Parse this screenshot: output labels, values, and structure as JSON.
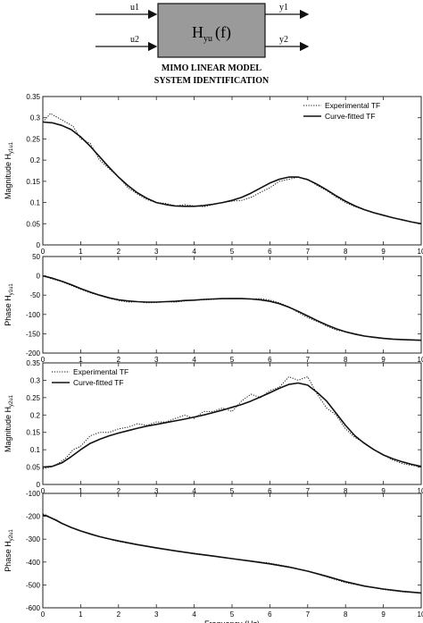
{
  "diagram": {
    "inputs": [
      "u1",
      "u2"
    ],
    "outputs": [
      "y1",
      "y2"
    ],
    "block_label_main": "H",
    "block_label_sub": "yu",
    "block_label_arg": "(f)",
    "caption_line1": "MIMO LINEAR MODEL",
    "caption_line2": "SYSTEM IDENTIFICATION",
    "block_color": "#9a9a9a"
  },
  "colors": {
    "line": "#111111",
    "frame": "#222222"
  },
  "chart_data": [
    {
      "type": "line",
      "ylabel": "Magnitude H",
      "ylabel_sub": "y1u1",
      "xlim": [
        0,
        10
      ],
      "ylim": [
        0,
        0.35
      ],
      "xticks": [
        "0",
        "1",
        "2",
        "3",
        "4",
        "5",
        "6",
        "7",
        "8",
        "9",
        "10"
      ],
      "yticks": [
        "0",
        "0.05",
        "0.1",
        "0.15",
        "0.2",
        "0.25",
        "0.3",
        "0.35"
      ],
      "legend": {
        "position": "top-right",
        "entries": [
          "Experimental TF",
          "Curve-fitted TF"
        ]
      },
      "series": [
        {
          "name": "Experimental TF",
          "style": "dotted",
          "x": [
            0,
            0.2,
            0.4,
            0.6,
            0.8,
            1.0,
            1.25,
            1.5,
            1.75,
            2.0,
            2.25,
            2.5,
            2.75,
            3.0,
            3.25,
            3.5,
            3.75,
            4.0,
            4.25,
            4.5,
            4.75,
            5.0,
            5.25,
            5.5,
            5.75,
            6.0,
            6.25,
            6.5,
            6.75,
            7.0,
            7.25,
            7.5,
            7.75,
            8.0,
            8.25,
            8.5,
            8.75,
            9.0,
            9.25,
            9.5,
            9.75,
            10.0
          ],
          "y": [
            0.29,
            0.31,
            0.3,
            0.29,
            0.28,
            0.25,
            0.24,
            0.2,
            0.18,
            0.16,
            0.135,
            0.12,
            0.107,
            0.1,
            0.098,
            0.092,
            0.095,
            0.092,
            0.09,
            0.095,
            0.1,
            0.103,
            0.105,
            0.112,
            0.124,
            0.135,
            0.15,
            0.155,
            0.16,
            0.155,
            0.14,
            0.128,
            0.113,
            0.1,
            0.09,
            0.083,
            0.075,
            0.07,
            0.064,
            0.06,
            0.054,
            0.05
          ]
        },
        {
          "name": "Curve-fitted TF",
          "style": "solid",
          "x": [
            0,
            0.25,
            0.5,
            0.75,
            1.0,
            1.25,
            1.5,
            1.75,
            2.0,
            2.25,
            2.5,
            2.75,
            3.0,
            3.25,
            3.5,
            3.75,
            4.0,
            4.25,
            4.5,
            4.75,
            5.0,
            5.25,
            5.5,
            5.75,
            6.0,
            6.25,
            6.5,
            6.75,
            7.0,
            7.25,
            7.5,
            7.75,
            8.0,
            8.25,
            8.5,
            8.75,
            9.0,
            9.25,
            9.5,
            9.75,
            10.0
          ],
          "y": [
            0.29,
            0.288,
            0.282,
            0.272,
            0.255,
            0.233,
            0.208,
            0.183,
            0.16,
            0.14,
            0.123,
            0.11,
            0.1,
            0.095,
            0.092,
            0.091,
            0.091,
            0.093,
            0.096,
            0.1,
            0.105,
            0.112,
            0.122,
            0.134,
            0.146,
            0.155,
            0.16,
            0.16,
            0.154,
            0.143,
            0.13,
            0.116,
            0.103,
            0.092,
            0.083,
            0.076,
            0.07,
            0.064,
            0.059,
            0.054,
            0.05
          ]
        }
      ]
    },
    {
      "type": "line",
      "ylabel": "Phase H",
      "ylabel_sub": "y1u1",
      "xlim": [
        0,
        10
      ],
      "ylim": [
        -200,
        50
      ],
      "xticks": [
        "0",
        "1",
        "2",
        "3",
        "4",
        "5",
        "6",
        "7",
        "8",
        "9",
        "10"
      ],
      "yticks": [
        "-200",
        "-150",
        "-100",
        "-50",
        "0",
        "50"
      ],
      "series": [
        {
          "name": "Experimental TF",
          "style": "dotted",
          "x": [
            0,
            0.25,
            0.5,
            0.75,
            1.0,
            1.25,
            1.5,
            1.75,
            2.0,
            2.25,
            2.5,
            2.75,
            3.0,
            3.25,
            3.5,
            3.75,
            4.0,
            4.25,
            4.5,
            4.75,
            5.0,
            5.25,
            5.5,
            5.75,
            6.0,
            6.25,
            6.5,
            6.75,
            7.0,
            7.25,
            7.5,
            7.75,
            8.0,
            8.25,
            8.5,
            8.75,
            9.0,
            9.25,
            9.5,
            9.75,
            10.0
          ],
          "y": [
            0,
            -8,
            -15,
            -25,
            -35,
            -44,
            -51,
            -58,
            -64,
            -68,
            -67,
            -70,
            -69,
            -67,
            -68,
            -65,
            -63,
            -62,
            -61,
            -59,
            -58,
            -58,
            -60,
            -59,
            -63,
            -70,
            -80,
            -95,
            -108,
            -118,
            -130,
            -140,
            -145,
            -150,
            -155,
            -160,
            -162,
            -164,
            -165,
            -166,
            -167
          ]
        },
        {
          "name": "Curve-fitted TF",
          "style": "solid",
          "x": [
            0,
            0.25,
            0.5,
            0.75,
            1.0,
            1.25,
            1.5,
            1.75,
            2.0,
            2.25,
            2.5,
            2.75,
            3.0,
            3.25,
            3.5,
            3.75,
            4.0,
            4.25,
            4.5,
            4.75,
            5.0,
            5.25,
            5.5,
            5.75,
            6.0,
            6.25,
            6.5,
            6.75,
            7.0,
            7.25,
            7.5,
            7.75,
            8.0,
            8.25,
            8.5,
            8.75,
            9.0,
            9.25,
            9.5,
            9.75,
            10.0
          ],
          "y": [
            0,
            -6,
            -14,
            -23,
            -33,
            -42,
            -50,
            -57,
            -62,
            -65,
            -67,
            -68,
            -68,
            -67,
            -66,
            -64,
            -63,
            -61,
            -60,
            -59,
            -59,
            -59,
            -60,
            -62,
            -66,
            -72,
            -81,
            -92,
            -104,
            -116,
            -127,
            -137,
            -145,
            -151,
            -156,
            -159,
            -162,
            -164,
            -165,
            -166,
            -167
          ]
        }
      ]
    },
    {
      "type": "line",
      "ylabel": "Magnitude H",
      "ylabel_sub": "y2u1",
      "xlim": [
        0,
        10
      ],
      "ylim": [
        0,
        0.35
      ],
      "xticks": [
        "0",
        "1",
        "2",
        "3",
        "4",
        "5",
        "6",
        "7",
        "8",
        "9",
        "10"
      ],
      "yticks": [
        "0",
        "0.05",
        "0.1",
        "0.15",
        "0.2",
        "0.25",
        "0.3",
        "0.35"
      ],
      "legend": {
        "position": "top-left",
        "entries": [
          "Experimental TF",
          "Curve-fitted TF"
        ]
      },
      "series": [
        {
          "name": "Experimental TF",
          "style": "dotted",
          "x": [
            0,
            0.2,
            0.4,
            0.6,
            0.8,
            1.0,
            1.25,
            1.5,
            1.75,
            2.0,
            2.25,
            2.5,
            2.75,
            3.0,
            3.25,
            3.5,
            3.75,
            4.0,
            4.25,
            4.5,
            4.75,
            5.0,
            5.25,
            5.5,
            5.75,
            6.0,
            6.25,
            6.5,
            6.75,
            7.0,
            7.25,
            7.5,
            7.75,
            8.0,
            8.25,
            8.5,
            8.75,
            9.0,
            9.25,
            9.5,
            9.75,
            10.0
          ],
          "y": [
            0.045,
            0.05,
            0.06,
            0.075,
            0.1,
            0.11,
            0.14,
            0.15,
            0.15,
            0.16,
            0.165,
            0.175,
            0.17,
            0.18,
            0.18,
            0.19,
            0.2,
            0.19,
            0.21,
            0.21,
            0.22,
            0.21,
            0.24,
            0.26,
            0.25,
            0.27,
            0.28,
            0.31,
            0.3,
            0.31,
            0.26,
            0.22,
            0.2,
            0.16,
            0.135,
            0.12,
            0.1,
            0.085,
            0.07,
            0.06,
            0.055,
            0.05
          ]
        },
        {
          "name": "Curve-fitted TF",
          "style": "solid",
          "x": [
            0,
            0.25,
            0.5,
            0.75,
            1.0,
            1.25,
            1.5,
            1.75,
            2.0,
            2.25,
            2.5,
            2.75,
            3.0,
            3.25,
            3.5,
            3.75,
            4.0,
            4.25,
            4.5,
            4.75,
            5.0,
            5.25,
            5.5,
            5.75,
            6.0,
            6.25,
            6.5,
            6.75,
            7.0,
            7.25,
            7.5,
            7.75,
            8.0,
            8.25,
            8.5,
            8.75,
            9.0,
            9.25,
            9.5,
            9.75,
            10.0
          ],
          "y": [
            0.05,
            0.052,
            0.062,
            0.08,
            0.1,
            0.118,
            0.13,
            0.14,
            0.148,
            0.155,
            0.162,
            0.168,
            0.173,
            0.178,
            0.183,
            0.188,
            0.194,
            0.2,
            0.207,
            0.214,
            0.222,
            0.23,
            0.24,
            0.252,
            0.264,
            0.277,
            0.288,
            0.292,
            0.286,
            0.265,
            0.24,
            0.205,
            0.17,
            0.14,
            0.118,
            0.1,
            0.085,
            0.074,
            0.065,
            0.058,
            0.052
          ]
        }
      ]
    },
    {
      "type": "line",
      "ylabel": "Phase H",
      "ylabel_sub": "y2u1",
      "xlabel": "Frequency (Hz)",
      "xlim": [
        0,
        10
      ],
      "ylim": [
        -600,
        -100
      ],
      "xticks": [
        "0",
        "1",
        "2",
        "3",
        "4",
        "5",
        "6",
        "7",
        "8",
        "9",
        "10"
      ],
      "yticks": [
        "-600",
        "-500",
        "-400",
        "-300",
        "-200",
        "-100"
      ],
      "series": [
        {
          "name": "Experimental TF",
          "style": "dotted",
          "x": [
            0,
            0.1,
            0.2,
            0.35,
            0.5,
            0.75,
            1.0,
            1.25,
            1.5,
            1.75,
            2.0,
            2.5,
            3.0,
            3.5,
            4.0,
            4.5,
            5.0,
            5.5,
            6.0,
            6.5,
            7.0,
            7.5,
            8.0,
            8.5,
            9.0,
            9.5,
            10.0
          ],
          "y": [
            -190,
            -195,
            -205,
            -215,
            -230,
            -250,
            -265,
            -278,
            -290,
            -300,
            -310,
            -325,
            -340,
            -350,
            -365,
            -375,
            -385,
            -395,
            -405,
            -420,
            -440,
            -465,
            -490,
            -505,
            -520,
            -530,
            -535
          ]
        },
        {
          "name": "Curve-fitted TF",
          "style": "solid",
          "x": [
            0,
            0.1,
            0.2,
            0.35,
            0.5,
            0.75,
            1.0,
            1.25,
            1.5,
            1.75,
            2.0,
            2.5,
            3.0,
            3.5,
            4.0,
            4.5,
            5.0,
            5.5,
            6.0,
            6.5,
            7.0,
            7.5,
            8.0,
            8.5,
            9.0,
            9.5,
            10.0
          ],
          "y": [
            -195,
            -198,
            -206,
            -217,
            -231,
            -249,
            -264,
            -277,
            -289,
            -299,
            -308,
            -324,
            -338,
            -351,
            -363,
            -374,
            -385,
            -396,
            -408,
            -422,
            -440,
            -462,
            -486,
            -505,
            -518,
            -528,
            -535
          ]
        }
      ]
    }
  ]
}
